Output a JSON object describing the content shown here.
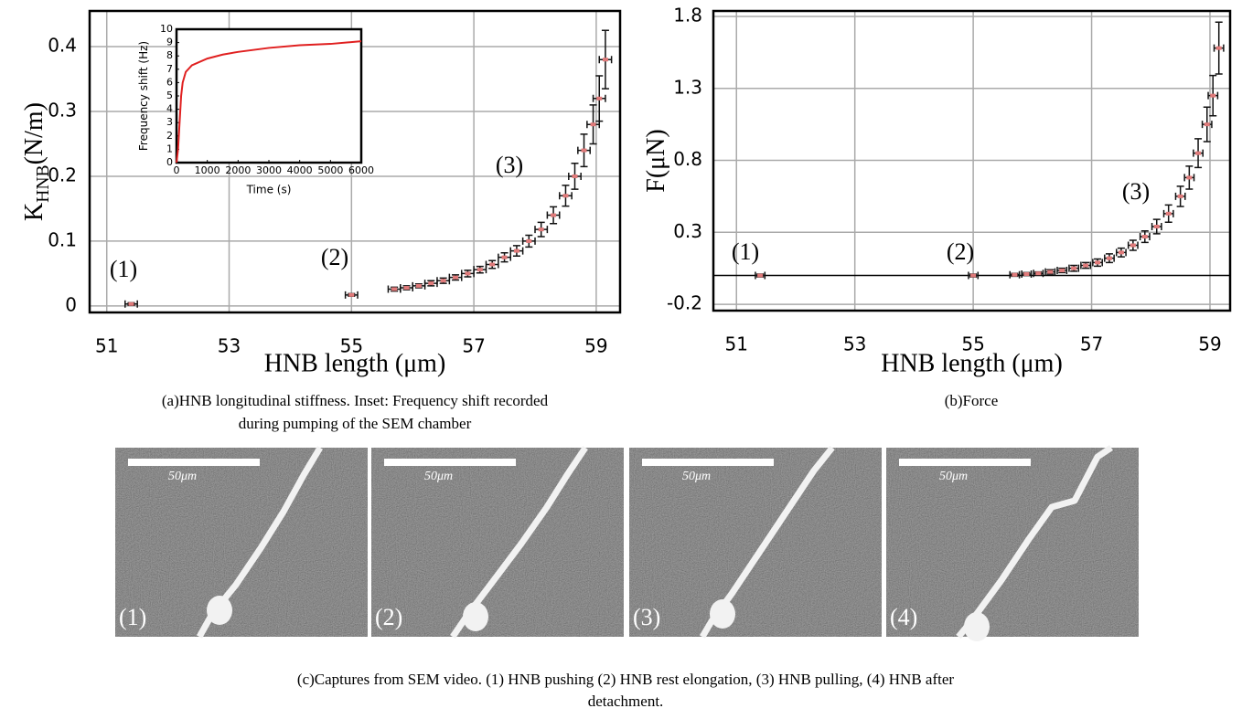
{
  "chart_data": [
    {
      "type": "scatter",
      "ylabel": [
        "K",
        "HNB",
        "(N/m)"
      ],
      "xlabel": "HNB length (μm)",
      "caption": [
        "(a)HNB longitudinal stiffness. Inset: Frequency shift recorded",
        "during pumping of the SEM chamber"
      ],
      "annotations": [
        "(1)",
        "(2)",
        "(3)"
      ],
      "xlim": [
        50.72,
        59.39
      ],
      "xticks": [
        51,
        53,
        55,
        57,
        59
      ],
      "ylim": [
        -0.01,
        0.455
      ],
      "yticks": [
        0,
        0.1,
        0.2,
        0.3,
        0.4
      ],
      "grid": true,
      "color": "#e07a7a",
      "xerr": 0.1,
      "x": [
        51.4,
        55.0,
        55.7,
        55.9,
        56.1,
        56.3,
        56.5,
        56.7,
        56.9,
        57.1,
        57.3,
        57.5,
        57.7,
        57.9,
        58.1,
        58.3,
        58.5,
        58.65,
        58.8,
        58.95,
        59.05,
        59.15
      ],
      "values": [
        0.003,
        0.017,
        0.026,
        0.028,
        0.031,
        0.035,
        0.039,
        0.044,
        0.05,
        0.056,
        0.064,
        0.075,
        0.085,
        0.1,
        0.118,
        0.14,
        0.17,
        0.2,
        0.24,
        0.28,
        0.32,
        0.38
      ],
      "yerr": [
        0.002,
        0.002,
        0.003,
        0.003,
        0.003,
        0.004,
        0.004,
        0.004,
        0.005,
        0.005,
        0.006,
        0.007,
        0.008,
        0.009,
        0.011,
        0.013,
        0.016,
        0.02,
        0.025,
        0.03,
        0.035,
        0.045
      ]
    },
    {
      "type": "scatter",
      "ylabel": [
        "F(μN)"
      ],
      "xlabel": "HNB length (μm)",
      "caption": [
        "(b)Force"
      ],
      "annotations": [
        "(1)",
        "(2)",
        "(3)"
      ],
      "xlim": [
        50.61,
        59.34
      ],
      "xticks": [
        51,
        53,
        55,
        57,
        59
      ],
      "ylim": [
        -0.244,
        1.838
      ],
      "yticks": [
        -0.2,
        0.3,
        0.8,
        1.3,
        1.8
      ],
      "grid": true,
      "zero_line": true,
      "color": "#e07a7a",
      "xerr": 0.08,
      "x": [
        51.4,
        55.0,
        55.7,
        55.9,
        56.1,
        56.3,
        56.5,
        56.7,
        56.9,
        57.1,
        57.3,
        57.5,
        57.7,
        57.9,
        58.1,
        58.3,
        58.5,
        58.65,
        58.8,
        58.95,
        59.05,
        59.15
      ],
      "values": [
        0,
        0,
        0.005,
        0.01,
        0.015,
        0.025,
        0.035,
        0.05,
        0.07,
        0.09,
        0.12,
        0.16,
        0.21,
        0.27,
        0.34,
        0.43,
        0.55,
        0.68,
        0.85,
        1.05,
        1.25,
        1.58
      ],
      "yerr": [
        0.01,
        0.01,
        0.01,
        0.01,
        0.01,
        0.015,
        0.015,
        0.02,
        0.02,
        0.025,
        0.03,
        0.03,
        0.035,
        0.04,
        0.05,
        0.06,
        0.07,
        0.08,
        0.1,
        0.12,
        0.14,
        0.18
      ]
    },
    {
      "type": "line",
      "ylabel": [
        "Frequency shift (Hz)"
      ],
      "xlabel": "Time (s)",
      "xlim": [
        0,
        6000
      ],
      "xticks": [
        0,
        1000,
        2000,
        3000,
        4000,
        5000,
        6000
      ],
      "ylim": [
        0,
        10
      ],
      "yticks": [
        0,
        1,
        2,
        3,
        4,
        5,
        6,
        7,
        8,
        9,
        10
      ],
      "color": "#e02020",
      "x": [
        0,
        50,
        100,
        150,
        200,
        300,
        500,
        1000,
        1500,
        2000,
        3000,
        4000,
        5000,
        6000
      ],
      "values": [
        0,
        1,
        3,
        5,
        6,
        6.8,
        7.3,
        7.8,
        8.1,
        8.3,
        8.6,
        8.8,
        8.9,
        9.1
      ]
    }
  ],
  "figure_c": {
    "caption": [
      "(c)Captures from SEM video. (1) HNB pushing (2) HNB rest elongation, (3) HNB pulling, (4) HNB after",
      "detachment."
    ],
    "panels": [
      {
        "label": "(1)",
        "scale": "50μm"
      },
      {
        "label": "(2)",
        "scale": "50μm"
      },
      {
        "label": "(3)",
        "scale": "50μm"
      },
      {
        "label": "(4)",
        "scale": "50μm"
      }
    ]
  }
}
